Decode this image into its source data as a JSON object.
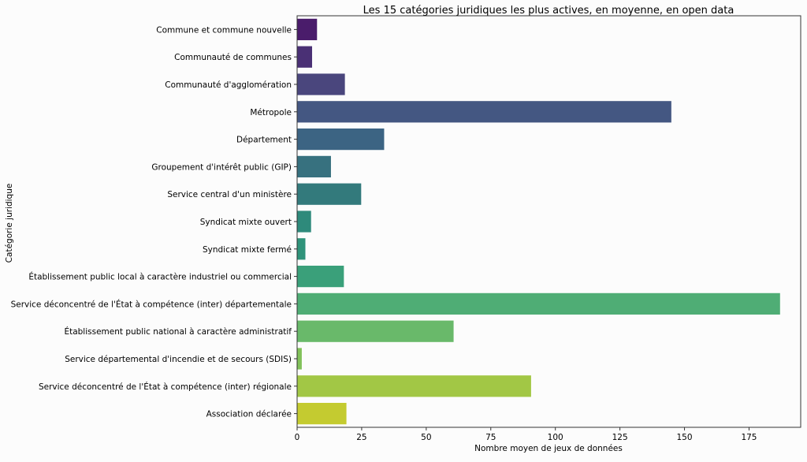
{
  "chart_data": {
    "type": "bar",
    "orientation": "horizontal",
    "title": "Les 15 catégories juridiques les plus actives, en moyenne, en open data",
    "xlabel": "Nombre moyen de jeux de données",
    "ylabel": "Catégorie juridique",
    "xlim": [
      0,
      195
    ],
    "xticks": [
      0,
      25,
      50,
      75,
      100,
      125,
      150,
      175
    ],
    "grid": false,
    "categories": [
      "Commune et commune nouvelle",
      "Communauté de communes",
      "Communauté d'agglomération",
      "Métropole",
      "Département",
      "Groupement d'intérêt public (GIP)",
      "Service central d'un ministère",
      "Syndicat mixte ouvert",
      "Syndicat mixte fermé",
      "Établissement public local à caractère industriel ou commercial",
      "Service déconcentré de l'État à compétence (inter) départementale",
      "Établissement public national à caractère administratif",
      "Service départemental d'incendie et de secours (SDIS)",
      "Service déconcentré de l'État à compétence (inter) régionale",
      "Association déclarée"
    ],
    "values": [
      7.8,
      5.9,
      18.6,
      145.0,
      33.8,
      13.2,
      24.9,
      5.5,
      3.3,
      18.2,
      187.1,
      60.7,
      1.9,
      90.7,
      19.2
    ],
    "colors": [
      "#4a1c6b",
      "#4a3075",
      "#4a467d",
      "#445782",
      "#3c6483",
      "#37717f",
      "#337a7c",
      "#2e8a7b",
      "#2f937a",
      "#3aa07a",
      "#4fad75",
      "#69b96a",
      "#81c15a",
      "#a2c745",
      "#c4cb30"
    ]
  }
}
